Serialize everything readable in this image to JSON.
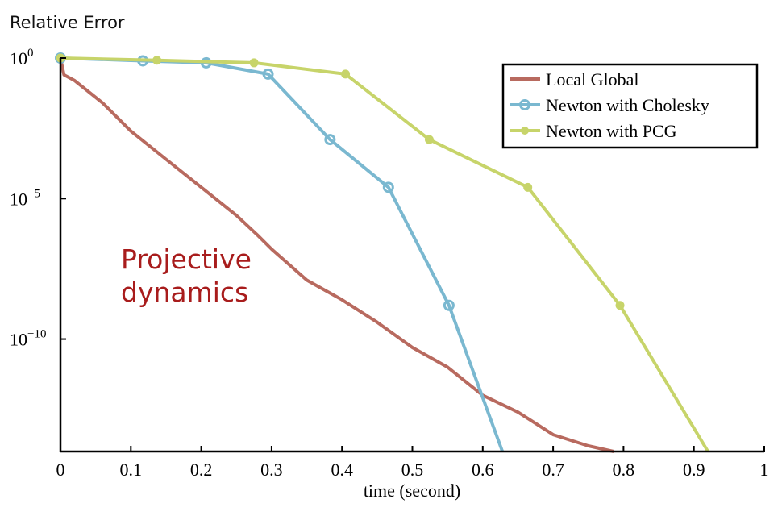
{
  "chart_data": {
    "type": "line",
    "title": "",
    "xlabel": "time (second)",
    "ylabel": "Relative Error",
    "xlim": [
      0,
      1
    ],
    "ylim_log10": [
      -14,
      0
    ],
    "yscale": "log",
    "x_ticks": [
      "0",
      "0.1",
      "0.2",
      "0.3",
      "0.4",
      "0.5",
      "0.6",
      "0.7",
      "0.8",
      "0.9",
      "1"
    ],
    "y_ticks": [
      {
        "base": "10",
        "exp": "0",
        "log10": 0
      },
      {
        "base": "10",
        "exp": "−5",
        "log10": -5
      },
      {
        "base": "10",
        "exp": "−10",
        "log10": -10
      }
    ],
    "grid": false,
    "legend_position": "top-right",
    "annotation": {
      "lines": [
        "Projective",
        "dynamics"
      ],
      "color": "#a81c1c"
    },
    "series": [
      {
        "name": "Local Global",
        "color": "#b86a5f",
        "marker": "none",
        "points": [
          [
            0,
            0
          ],
          [
            0.005,
            -0.6
          ],
          [
            0.02,
            -0.8
          ],
          [
            0.04,
            -1.2
          ],
          [
            0.06,
            -1.6
          ],
          [
            0.1,
            -2.6
          ],
          [
            0.15,
            -3.6
          ],
          [
            0.2,
            -4.6
          ],
          [
            0.25,
            -5.6
          ],
          [
            0.28,
            -6.3
          ],
          [
            0.3,
            -6.8
          ],
          [
            0.35,
            -7.9
          ],
          [
            0.4,
            -8.6
          ],
          [
            0.45,
            -9.4
          ],
          [
            0.5,
            -10.3
          ],
          [
            0.55,
            -11.0
          ],
          [
            0.6,
            -12.0
          ],
          [
            0.65,
            -12.6
          ],
          [
            0.7,
            -13.4
          ],
          [
            0.75,
            -13.8
          ],
          [
            0.786,
            -14.0
          ]
        ]
      },
      {
        "name": "Newton with Cholesky",
        "color": "#7ab8d0",
        "marker": "circle",
        "points": [
          [
            0,
            0
          ],
          [
            0.117,
            -0.1
          ],
          [
            0.207,
            -0.17
          ],
          [
            0.295,
            -0.57
          ],
          [
            0.383,
            -2.9
          ],
          [
            0.466,
            -4.6
          ],
          [
            0.552,
            -8.8
          ],
          [
            0.628,
            -14.0
          ]
        ]
      },
      {
        "name": "Newton with PCG",
        "color": "#c7d46a",
        "marker": "dot",
        "points": [
          [
            0,
            0
          ],
          [
            0.137,
            -0.08
          ],
          [
            0.275,
            -0.17
          ],
          [
            0.405,
            -0.57
          ],
          [
            0.524,
            -2.9
          ],
          [
            0.664,
            -4.6
          ],
          [
            0.795,
            -8.8
          ],
          [
            0.92,
            -14.0
          ]
        ]
      }
    ]
  }
}
